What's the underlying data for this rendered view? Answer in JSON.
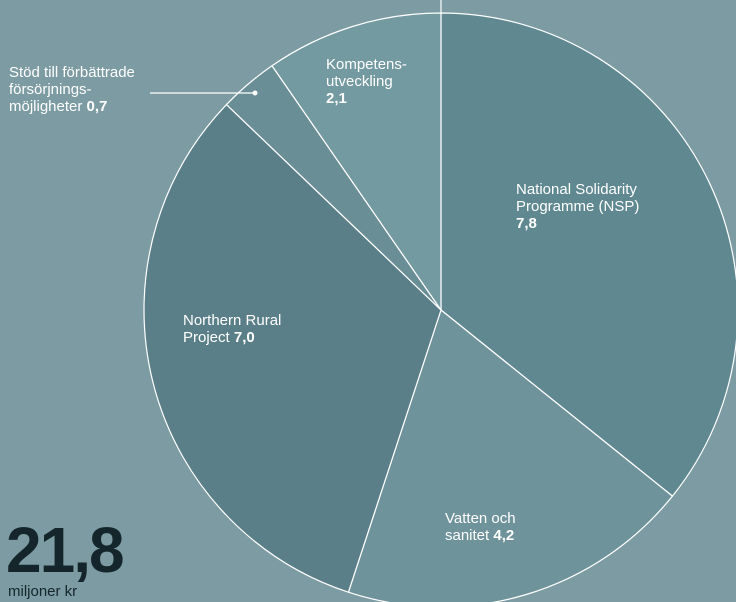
{
  "chart_data": {
    "type": "pie",
    "categories": [
      "National Solidarity\nProgramme (NSP)",
      "Vatten och\nsanitet",
      "Northern Rural\nProject",
      "Stöd till förbättrade\nförsörjnings-\nmöjligheter",
      "Kompetens-\nutveckling"
    ],
    "values": [
      7.8,
      4.2,
      7.0,
      0.7,
      2.1
    ],
    "value_labels": [
      "7,8",
      "4,2",
      "7,0",
      "0,7",
      "2,1"
    ],
    "colors": [
      "#5f8891",
      "#6f939b",
      "#5a7f88",
      "#6a8e96",
      "#7399a1"
    ],
    "total_label": "21,8",
    "total_unit": "miljoner kr"
  }
}
